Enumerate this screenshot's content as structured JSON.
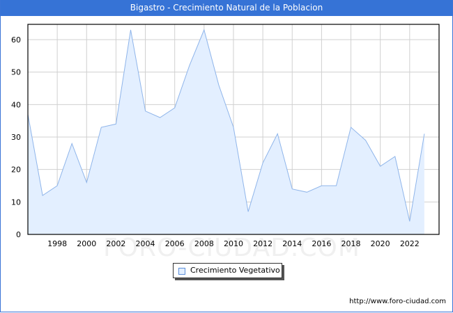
{
  "title": "Bigastro - Crecimiento Natural de la Poblacion",
  "watermark": "FORO-CIUDAD.COM",
  "legend": {
    "label": "Crecimiento Vegetativo"
  },
  "footer": {
    "url": "http://www.foro-ciudad.com"
  },
  "colors": {
    "titlebar": "#3673d6",
    "line": "#8fb5ea",
    "fill": "#e3efff",
    "grid": "#d0d0d0"
  },
  "chart_data": {
    "type": "area",
    "title": "Bigastro - Crecimiento Natural de la Poblacion",
    "xlabel": "",
    "ylabel": "",
    "x": [
      1996,
      1997,
      1998,
      1999,
      2000,
      2001,
      2002,
      2003,
      2004,
      2005,
      2006,
      2007,
      2008,
      2009,
      2010,
      2011,
      2012,
      2013,
      2014,
      2015,
      2016,
      2017,
      2018,
      2019,
      2020,
      2021,
      2022,
      2023
    ],
    "series": [
      {
        "name": "Crecimiento Vegetativo",
        "values": [
          37,
          12,
          15,
          28,
          16,
          33,
          34,
          63,
          38,
          36,
          39,
          52,
          63,
          46,
          33,
          7,
          22,
          31,
          14,
          13,
          15,
          15,
          33,
          29,
          21,
          24,
          4,
          31
        ]
      }
    ],
    "xticks": [
      "1998",
      "2000",
      "2002",
      "2004",
      "2006",
      "2008",
      "2010",
      "2012",
      "2014",
      "2016",
      "2018",
      "2020",
      "2022"
    ],
    "yticks": [
      "0",
      "10",
      "20",
      "30",
      "40",
      "50",
      "60"
    ],
    "ylim": [
      0,
      65
    ],
    "xlim": [
      1996,
      2024
    ],
    "grid": true,
    "legend_position": "bottom-center"
  }
}
